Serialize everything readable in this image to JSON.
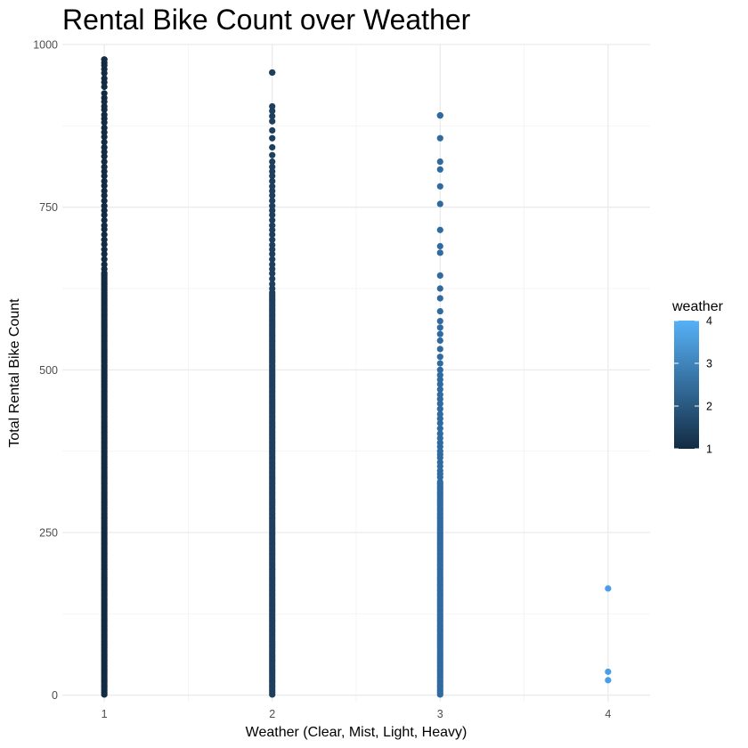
{
  "chart_data": {
    "type": "scatter",
    "title": "Rental Bike Count over Weather",
    "xlabel": "Weather (Clear, Mist, Light, Heavy)",
    "ylabel": "Total Rental Bike Count",
    "xlim": [
      0.75,
      4.25
    ],
    "ylim": [
      -10,
      1000
    ],
    "x_ticks": [
      1,
      2,
      3,
      4
    ],
    "y_ticks": [
      0,
      250,
      500,
      750,
      1000
    ],
    "grid": true,
    "legend": {
      "title": "weather",
      "position": "right",
      "type": "colorbar",
      "ticks": [
        1,
        2,
        3,
        4
      ],
      "low_color": "#132b43",
      "high_color": "#56b1f7"
    },
    "series": [
      {
        "x": 1,
        "color": "#132b43",
        "min": 1,
        "max": 977,
        "dense_to": 650,
        "scattered": [
          655,
          662,
          670,
          678,
          685,
          693,
          700,
          708,
          716,
          722,
          730,
          738,
          745,
          752,
          760,
          768,
          775,
          783,
          790,
          798,
          805,
          812,
          820,
          828,
          835,
          842,
          850,
          858,
          865,
          872,
          880,
          886,
          892,
          900,
          905,
          912,
          918,
          925,
          935,
          942,
          948,
          956,
          962,
          968,
          972,
          977
        ]
      },
      {
        "x": 2,
        "color": "#1f3f5e",
        "min": 1,
        "max": 957,
        "dense_to": 620,
        "scattered": [
          625,
          632,
          640,
          648,
          655,
          662,
          670,
          678,
          685,
          692,
          700,
          708,
          715,
          722,
          730,
          738,
          745,
          752,
          760,
          768,
          775,
          782,
          790,
          798,
          805,
          812,
          820,
          830,
          842,
          856,
          868,
          882,
          890,
          898,
          905,
          957
        ]
      },
      {
        "x": 3,
        "color": "#2f6aa1",
        "min": 1,
        "max": 891,
        "dense_to": 330,
        "scattered": [
          335,
          340,
          345,
          352,
          358,
          365,
          370,
          375,
          382,
          388,
          395,
          402,
          410,
          418,
          425,
          432,
          440,
          448,
          455,
          462,
          470,
          478,
          485,
          492,
          500,
          510,
          520,
          532,
          545,
          555,
          565,
          575,
          590,
          610,
          625,
          645,
          680,
          690,
          715,
          755,
          782,
          808,
          820,
          856,
          891
        ]
      },
      {
        "x": 4,
        "color": "#4a9de6",
        "values": [
          164,
          36,
          23
        ]
      }
    ]
  }
}
